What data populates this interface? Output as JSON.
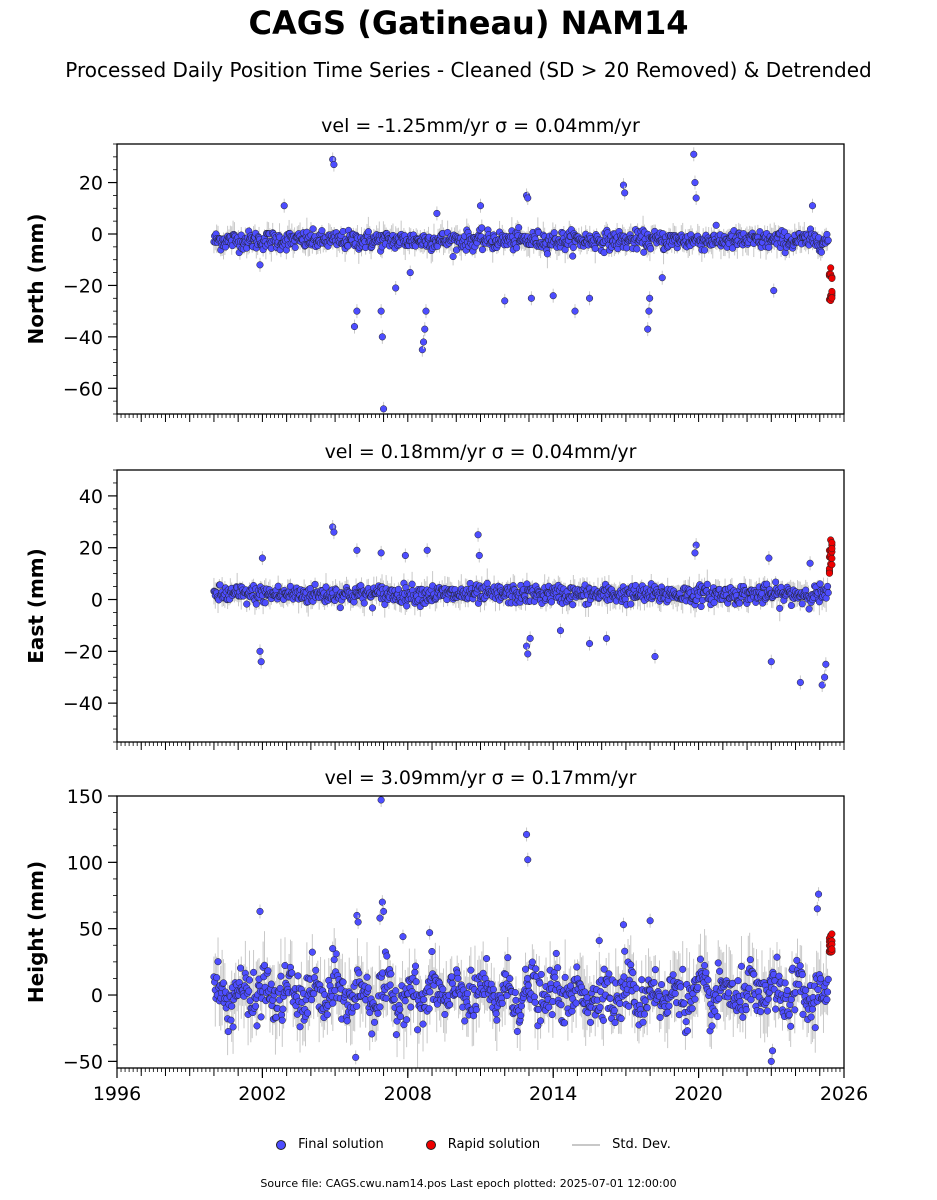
{
  "title": "CAGS (Gatineau) NAM14",
  "subtitle": "Processed Daily Position Time Series - Cleaned (SD > 20 Removed) & Detrended",
  "legend": {
    "final": "Final solution",
    "rapid": "Rapid solution",
    "sd": "Std. Dev."
  },
  "footer": "Source file: CAGS.cwu.nam14.pos  Last epoch plotted: 2025-07-01 12:00:00",
  "colors": {
    "final": "#4d4dff",
    "rapid": "#ee0000",
    "sd": "#c8c8c8",
    "edge": "#222222"
  },
  "chart_data": [
    {
      "type": "scatter",
      "title": "vel = -1.25mm/yr   σ = 0.04mm/yr",
      "ylabel": "North (mm)",
      "xlim": [
        1996,
        2026
      ],
      "ylim": [
        -70,
        35
      ],
      "yticks": [
        20,
        0,
        -20,
        -40,
        -60
      ],
      "data_start": 2000.0,
      "data_end": 2025.5,
      "noise_sd": 1.8,
      "series": [
        {
          "name": "Final solution",
          "x_range": [
            2000.0,
            2025.35
          ],
          "center": -2.5
        },
        {
          "name": "Rapid solution",
          "x": [
            2025.4,
            2025.45,
            2025.5
          ],
          "y_range": [
            -26,
            -13
          ]
        }
      ],
      "outliers": [
        {
          "x": 2004.9,
          "y": 29
        },
        {
          "x": 2004.95,
          "y": 27
        },
        {
          "x": 2005.8,
          "y": -36
        },
        {
          "x": 2005.9,
          "y": -30
        },
        {
          "x": 2006.9,
          "y": -30
        },
        {
          "x": 2006.95,
          "y": -40
        },
        {
          "x": 2007.0,
          "y": -68
        },
        {
          "x": 2007.5,
          "y": -21
        },
        {
          "x": 2008.6,
          "y": -45
        },
        {
          "x": 2008.65,
          "y": -42
        },
        {
          "x": 2008.7,
          "y": -37
        },
        {
          "x": 2008.75,
          "y": -30
        },
        {
          "x": 2012.9,
          "y": 15
        },
        {
          "x": 2012.95,
          "y": 14
        },
        {
          "x": 2011.0,
          "y": 11
        },
        {
          "x": 2016.9,
          "y": 19
        },
        {
          "x": 2016.95,
          "y": 16
        },
        {
          "x": 2017.9,
          "y": -37
        },
        {
          "x": 2017.95,
          "y": -30
        },
        {
          "x": 2017.98,
          "y": -25
        },
        {
          "x": 2019.8,
          "y": 31
        },
        {
          "x": 2019.85,
          "y": 20
        },
        {
          "x": 2019.9,
          "y": 14
        },
        {
          "x": 2013.1,
          "y": -25
        },
        {
          "x": 2014.0,
          "y": -24
        },
        {
          "x": 2014.9,
          "y": -30
        },
        {
          "x": 2015.5,
          "y": -25
        },
        {
          "x": 2012.0,
          "y": -26
        },
        {
          "x": 2018.5,
          "y": -17
        },
        {
          "x": 2023.1,
          "y": -22
        },
        {
          "x": 2024.7,
          "y": 11
        },
        {
          "x": 2001.9,
          "y": -12
        },
        {
          "x": 2002.9,
          "y": 11
        },
        {
          "x": 2009.2,
          "y": 8
        },
        {
          "x": 2008.1,
          "y": -15
        }
      ]
    },
    {
      "type": "scatter",
      "title": "vel = 0.18mm/yr   σ = 0.04mm/yr",
      "ylabel": "East (mm)",
      "xlim": [
        1996,
        2026
      ],
      "ylim": [
        -55,
        50
      ],
      "yticks": [
        40,
        20,
        0,
        -20,
        -40
      ],
      "data_start": 2000.0,
      "data_end": 2025.5,
      "noise_sd": 1.8,
      "series": [
        {
          "name": "Final solution",
          "x_range": [
            2000.0,
            2025.35
          ],
          "center": 2.0
        },
        {
          "name": "Rapid solution",
          "x": [
            2025.4,
            2025.45,
            2025.5
          ],
          "y_range": [
            10,
            24
          ]
        }
      ],
      "outliers": [
        {
          "x": 2001.95,
          "y": -24
        },
        {
          "x": 2001.9,
          "y": -20
        },
        {
          "x": 2002.0,
          "y": 16
        },
        {
          "x": 2004.9,
          "y": 28
        },
        {
          "x": 2004.95,
          "y": 26
        },
        {
          "x": 2005.9,
          "y": 19
        },
        {
          "x": 2006.9,
          "y": 18
        },
        {
          "x": 2007.9,
          "y": 17
        },
        {
          "x": 2008.8,
          "y": 19
        },
        {
          "x": 2010.9,
          "y": 25
        },
        {
          "x": 2010.95,
          "y": 17
        },
        {
          "x": 2012.9,
          "y": -18
        },
        {
          "x": 2012.95,
          "y": -21
        },
        {
          "x": 2013.05,
          "y": -15
        },
        {
          "x": 2015.5,
          "y": -17
        },
        {
          "x": 2018.2,
          "y": -22
        },
        {
          "x": 2019.9,
          "y": 21
        },
        {
          "x": 2019.85,
          "y": 18
        },
        {
          "x": 2022.9,
          "y": 16
        },
        {
          "x": 2023.0,
          "y": -24
        },
        {
          "x": 2024.2,
          "y": -32
        },
        {
          "x": 2025.1,
          "y": -33
        },
        {
          "x": 2025.2,
          "y": -30
        },
        {
          "x": 2025.25,
          "y": -25
        },
        {
          "x": 2024.6,
          "y": 14
        },
        {
          "x": 2016.2,
          "y": -15
        },
        {
          "x": 2014.3,
          "y": -12
        }
      ]
    },
    {
      "type": "scatter",
      "title": "vel = 3.09mm/yr   σ = 0.17mm/yr",
      "ylabel": "Height (mm)",
      "xlim": [
        1996,
        2026
      ],
      "ylim": [
        -55,
        150
      ],
      "yticks": [
        150,
        100,
        50,
        0,
        -50
      ],
      "xticks": [
        1996,
        2002,
        2008,
        2014,
        2020,
        2026
      ],
      "data_start": 2000.0,
      "data_end": 2025.5,
      "noise_sd": 9,
      "series": [
        {
          "name": "Final solution",
          "x_range": [
            2000.0,
            2025.35
          ],
          "center": 0
        },
        {
          "name": "Rapid solution",
          "x": [
            2025.4,
            2025.45,
            2025.5
          ],
          "y_range": [
            29,
            53
          ]
        }
      ],
      "outliers": [
        {
          "x": 2001.9,
          "y": 63
        },
        {
          "x": 2004.9,
          "y": 35
        },
        {
          "x": 2005.9,
          "y": 60
        },
        {
          "x": 2005.95,
          "y": 55
        },
        {
          "x": 2005.85,
          "y": -47
        },
        {
          "x": 2006.9,
          "y": 147
        },
        {
          "x": 2006.95,
          "y": 70
        },
        {
          "x": 2007.0,
          "y": 63
        },
        {
          "x": 2006.85,
          "y": 58
        },
        {
          "x": 2007.8,
          "y": 44
        },
        {
          "x": 2008.9,
          "y": 47
        },
        {
          "x": 2012.9,
          "y": 121
        },
        {
          "x": 2012.95,
          "y": 102
        },
        {
          "x": 2016.9,
          "y": 53
        },
        {
          "x": 2016.95,
          "y": 33
        },
        {
          "x": 2018.0,
          "y": 56
        },
        {
          "x": 2015.9,
          "y": 41
        },
        {
          "x": 2024.95,
          "y": 76
        },
        {
          "x": 2024.9,
          "y": 65
        },
        {
          "x": 2023.0,
          "y": -50
        },
        {
          "x": 2023.05,
          "y": -42
        }
      ]
    }
  ]
}
